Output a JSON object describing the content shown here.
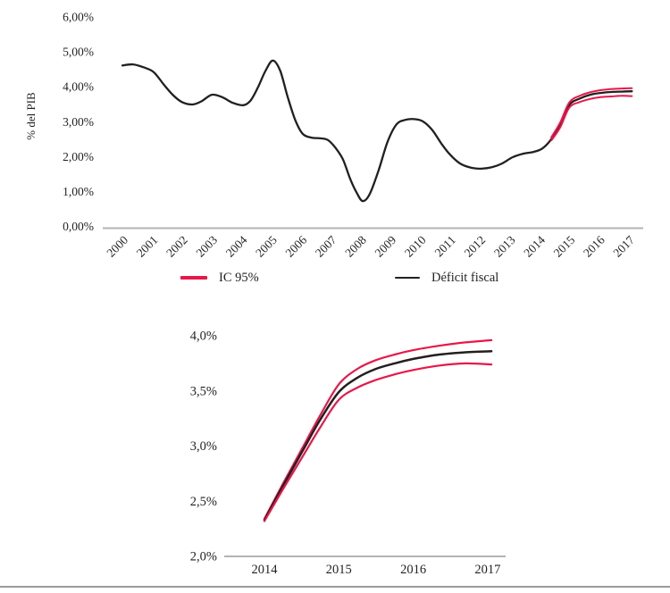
{
  "figure": {
    "background": "#ffffff",
    "text_color": "#231f20",
    "axis_color": "#b3b3b3",
    "divider_color": "#9c9c9c"
  },
  "legend": {
    "items": [
      {
        "label": "IC 95%",
        "color": "#e8174a"
      },
      {
        "label": "Déficit fiscal",
        "color": "#231f20"
      }
    ]
  },
  "chart_data": [
    {
      "type": "line",
      "title": "",
      "xlabel": "",
      "ylabel": "% del PIB",
      "ylim": [
        0,
        6
      ],
      "xlim": [
        2000,
        2017.2
      ],
      "grid": false,
      "legend_position": "bottom",
      "yticks": [
        {
          "value": 0,
          "label": "0,00%"
        },
        {
          "value": 1,
          "label": "1,00%"
        },
        {
          "value": 2,
          "label": "2,00%"
        },
        {
          "value": 3,
          "label": "3,00%"
        },
        {
          "value": 4,
          "label": "4,00%"
        },
        {
          "value": 5,
          "label": "5,00%"
        },
        {
          "value": 6,
          "label": "6,00%"
        }
      ],
      "xticks": [
        {
          "value": 2000,
          "label": "2000"
        },
        {
          "value": 2001,
          "label": "2001"
        },
        {
          "value": 2002,
          "label": "2002"
        },
        {
          "value": 2003,
          "label": "2003"
        },
        {
          "value": 2004,
          "label": "2004"
        },
        {
          "value": 2005,
          "label": "2005"
        },
        {
          "value": 2006,
          "label": "2006"
        },
        {
          "value": 2007,
          "label": "2007"
        },
        {
          "value": 2008,
          "label": "2008"
        },
        {
          "value": 2009,
          "label": "2009"
        },
        {
          "value": 2010,
          "label": "2010"
        },
        {
          "value": 2011,
          "label": "2011"
        },
        {
          "value": 2012,
          "label": "2012"
        },
        {
          "value": 2013,
          "label": "2013"
        },
        {
          "value": 2014,
          "label": "2014"
        },
        {
          "value": 2015,
          "label": "2015"
        },
        {
          "value": 2016,
          "label": "2016"
        },
        {
          "value": 2017,
          "label": "2017"
        }
      ],
      "series": [
        {
          "name": "Déficit fiscal",
          "color": "#231f20",
          "width": 2.3,
          "points": [
            [
              2000.0,
              4.61
            ],
            [
              2000.35,
              4.64
            ],
            [
              2000.7,
              4.56
            ],
            [
              2001.05,
              4.42
            ],
            [
              2001.4,
              4.05
            ],
            [
              2001.7,
              3.76
            ],
            [
              2002.0,
              3.56
            ],
            [
              2002.35,
              3.49
            ],
            [
              2002.65,
              3.58
            ],
            [
              2003.0,
              3.77
            ],
            [
              2003.35,
              3.7
            ],
            [
              2003.7,
              3.54
            ],
            [
              2004.05,
              3.47
            ],
            [
              2004.3,
              3.6
            ],
            [
              2004.55,
              3.98
            ],
            [
              2004.8,
              4.45
            ],
            [
              2005.05,
              4.75
            ],
            [
              2005.3,
              4.45
            ],
            [
              2005.55,
              3.7
            ],
            [
              2005.8,
              3.05
            ],
            [
              2006.05,
              2.65
            ],
            [
              2006.35,
              2.54
            ],
            [
              2006.65,
              2.52
            ],
            [
              2006.9,
              2.47
            ],
            [
              2007.15,
              2.25
            ],
            [
              2007.4,
              1.92
            ],
            [
              2007.65,
              1.35
            ],
            [
              2007.87,
              0.95
            ],
            [
              2008.07,
              0.72
            ],
            [
              2008.3,
              0.92
            ],
            [
              2008.6,
              1.6
            ],
            [
              2008.9,
              2.42
            ],
            [
              2009.2,
              2.92
            ],
            [
              2009.5,
              3.05
            ],
            [
              2009.8,
              3.07
            ],
            [
              2010.1,
              3.0
            ],
            [
              2010.4,
              2.76
            ],
            [
              2010.7,
              2.38
            ],
            [
              2011.0,
              2.05
            ],
            [
              2011.35,
              1.79
            ],
            [
              2011.7,
              1.68
            ],
            [
              2012.05,
              1.65
            ],
            [
              2012.4,
              1.69
            ],
            [
              2012.75,
              1.8
            ],
            [
              2013.1,
              1.98
            ],
            [
              2013.45,
              2.08
            ],
            [
              2013.8,
              2.13
            ],
            [
              2014.1,
              2.23
            ],
            [
              2014.4,
              2.5
            ],
            [
              2014.7,
              2.92
            ],
            [
              2015.0,
              3.48
            ],
            [
              2015.35,
              3.66
            ],
            [
              2015.7,
              3.77
            ],
            [
              2016.05,
              3.82
            ],
            [
              2016.4,
              3.85
            ],
            [
              2016.75,
              3.86
            ],
            [
              2017.1,
              3.87
            ]
          ]
        },
        {
          "name": "IC 95% superior",
          "color": "#e8174a",
          "width": 2.0,
          "points": [
            [
              2014.4,
              2.55
            ],
            [
              2014.7,
              2.98
            ],
            [
              2015.0,
              3.55
            ],
            [
              2015.35,
              3.74
            ],
            [
              2015.7,
              3.84
            ],
            [
              2016.05,
              3.9
            ],
            [
              2016.4,
              3.93
            ],
            [
              2016.75,
              3.95
            ],
            [
              2017.1,
              3.96
            ]
          ]
        },
        {
          "name": "IC 95% inferior",
          "color": "#e8174a",
          "width": 2.0,
          "points": [
            [
              2014.4,
              2.46
            ],
            [
              2014.7,
              2.84
            ],
            [
              2015.0,
              3.4
            ],
            [
              2015.35,
              3.56
            ],
            [
              2015.7,
              3.65
            ],
            [
              2016.05,
              3.7
            ],
            [
              2016.4,
              3.72
            ],
            [
              2016.75,
              3.74
            ],
            [
              2017.1,
              3.73
            ]
          ]
        }
      ]
    },
    {
      "type": "line",
      "title": "",
      "xlabel": "",
      "ylabel": "",
      "ylim": [
        2.0,
        4.0
      ],
      "xlim": [
        2014,
        2017.1
      ],
      "grid": false,
      "legend_position": "none",
      "yticks": [
        {
          "value": 2.0,
          "label": "2,0%"
        },
        {
          "value": 2.5,
          "label": "2,5%"
        },
        {
          "value": 3.0,
          "label": "3,0%"
        },
        {
          "value": 3.5,
          "label": "3,5%"
        },
        {
          "value": 4.0,
          "label": "4,0%"
        }
      ],
      "xticks": [
        {
          "value": 2014,
          "label": "2014"
        },
        {
          "value": 2015,
          "label": "2015"
        },
        {
          "value": 2016,
          "label": "2016"
        },
        {
          "value": 2017,
          "label": "2017"
        }
      ],
      "series": [
        {
          "name": "IC 95% superior",
          "color": "#e8174a",
          "width": 2.2,
          "points": [
            [
              2014.0,
              2.34
            ],
            [
              2014.25,
              2.66
            ],
            [
              2014.5,
              2.97
            ],
            [
              2014.75,
              3.28
            ],
            [
              2015.0,
              3.56
            ],
            [
              2015.25,
              3.7
            ],
            [
              2015.5,
              3.78
            ],
            [
              2015.75,
              3.83
            ],
            [
              2016.0,
              3.87
            ],
            [
              2016.35,
              3.91
            ],
            [
              2016.7,
              3.94
            ],
            [
              2017.05,
              3.96
            ]
          ]
        },
        {
          "name": "Déficit fiscal",
          "color": "#231f20",
          "width": 2.5,
          "points": [
            [
              2014.0,
              2.33
            ],
            [
              2014.25,
              2.64
            ],
            [
              2014.5,
              2.94
            ],
            [
              2014.75,
              3.24
            ],
            [
              2015.0,
              3.49
            ],
            [
              2015.25,
              3.62
            ],
            [
              2015.5,
              3.7
            ],
            [
              2015.75,
              3.75
            ],
            [
              2016.0,
              3.79
            ],
            [
              2016.35,
              3.83
            ],
            [
              2016.7,
              3.85
            ],
            [
              2017.05,
              3.86
            ]
          ]
        },
        {
          "name": "IC 95% inferior",
          "color": "#e8174a",
          "width": 2.2,
          "points": [
            [
              2014.0,
              2.32
            ],
            [
              2014.25,
              2.61
            ],
            [
              2014.5,
              2.89
            ],
            [
              2014.75,
              3.17
            ],
            [
              2015.0,
              3.42
            ],
            [
              2015.25,
              3.53
            ],
            [
              2015.5,
              3.6
            ],
            [
              2015.75,
              3.65
            ],
            [
              2016.0,
              3.69
            ],
            [
              2016.35,
              3.73
            ],
            [
              2016.7,
              3.75
            ],
            [
              2017.05,
              3.74
            ]
          ]
        }
      ]
    }
  ]
}
